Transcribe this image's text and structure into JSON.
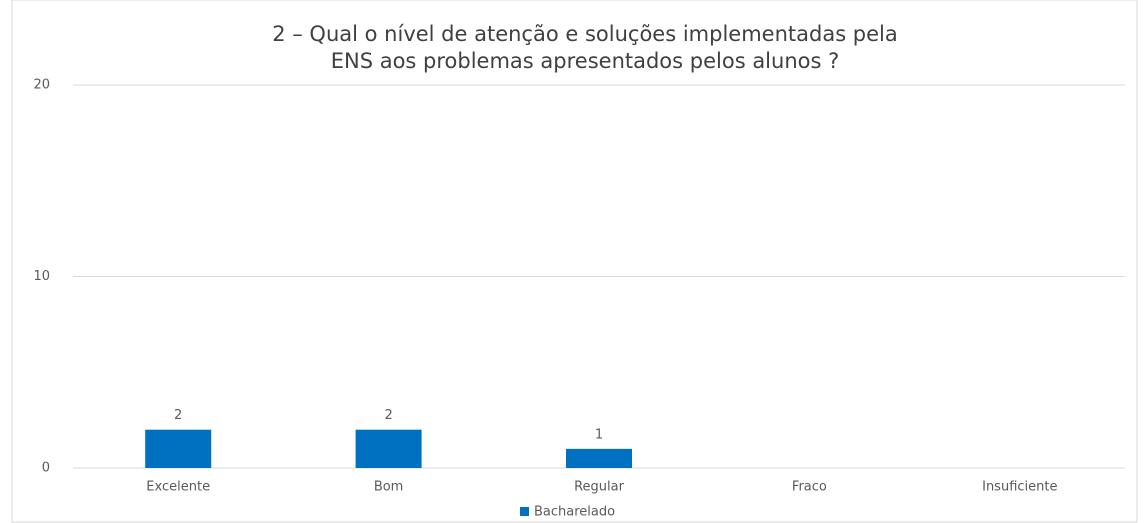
{
  "chart_data": {
    "type": "bar",
    "title": [
      "2 – Qual o nível de atenção e soluções implementadas pela",
      "ENS aos problemas apresentados pelos alunos ?"
    ],
    "categories": [
      "Excelente",
      "Bom",
      "Regular",
      "Fraco",
      "Insuficiente"
    ],
    "series": [
      {
        "name": "Bacharelado",
        "color": "#0070c0",
        "values": [
          2,
          2,
          1,
          null,
          null
        ]
      }
    ],
    "ylim": [
      0,
      20
    ],
    "yticks": [
      0,
      10,
      20
    ],
    "grid": true,
    "legend": "bottom"
  }
}
